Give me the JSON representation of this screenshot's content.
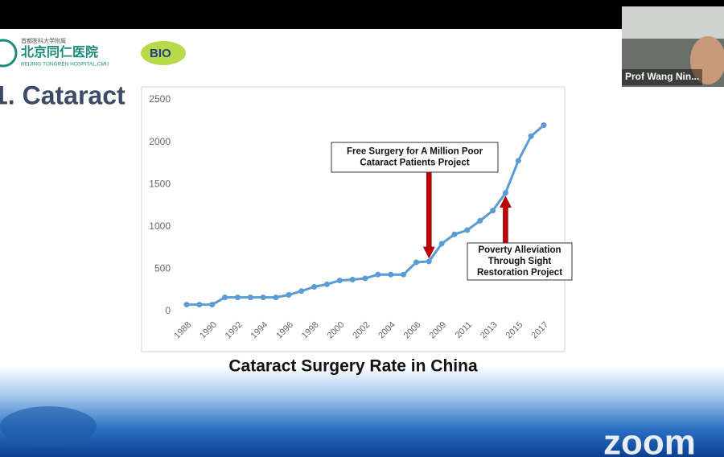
{
  "header": {
    "logo_line1": "首都医科大学附属",
    "logo_line2": "北京同仁医院",
    "logo_line3": "BEIJING TONGREN HOSPITAL,CMU",
    "logo_badge": "BIO"
  },
  "slide_title": "1. Cataract",
  "participant": {
    "name": "Prof Wang Nin..."
  },
  "brand": "zoom",
  "chart_data": {
    "type": "line",
    "title": "Cataract Surgery Rate in China",
    "categories": [
      "1988",
      null,
      "1990",
      null,
      "1992",
      null,
      "1994",
      null,
      "1996",
      null,
      "1998",
      null,
      "2000",
      null,
      "2002",
      null,
      "2004",
      null,
      "2006",
      null,
      "2009",
      null,
      "2011",
      null,
      "2013",
      null,
      "2015",
      null,
      "2017"
    ],
    "series": [
      {
        "name": "Cataract surgery rate",
        "color": "#5b9bd5",
        "values": [
          80,
          80,
          80,
          165,
          165,
          165,
          165,
          165,
          195,
          240,
          290,
          320,
          365,
          375,
          390,
          435,
          435,
          435,
          580,
          590,
          800,
          910,
          960,
          1070,
          1190,
          1400,
          1780,
          2070,
          2200
        ]
      }
    ],
    "ylim": [
      0,
      2500
    ],
    "yticks": [
      0,
      500,
      1000,
      1500,
      2000,
      2500
    ],
    "grid": false,
    "annotations": [
      {
        "lines": [
          "Free Surgery for A Million Poor",
          "Cataract Patients Project"
        ],
        "point": 19
      },
      {
        "lines": [
          "Poverty Alleviation",
          "Through Sight",
          "Restoration Project"
        ],
        "point": 25
      }
    ]
  }
}
